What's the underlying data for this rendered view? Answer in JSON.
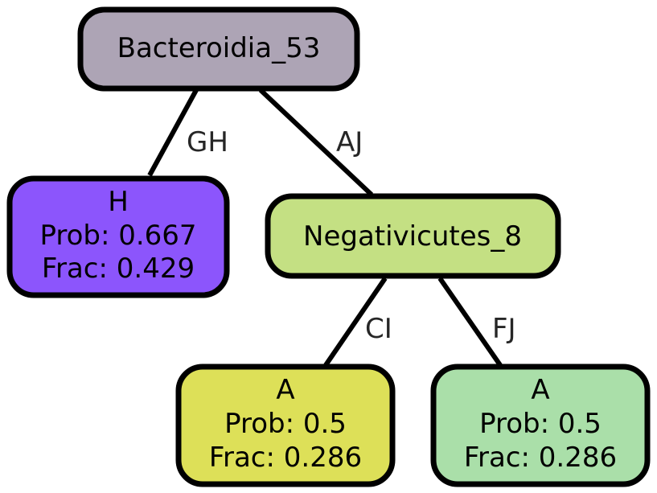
{
  "tree": {
    "nodes": {
      "root": {
        "label": "Bacteroidia_53",
        "color": "#ada4b5"
      },
      "leaf_h": {
        "label": "H",
        "prob": "Prob: 0.667",
        "frac": "Frac: 0.429",
        "color": "#8c55fc"
      },
      "inner_neg": {
        "label": "Negativicutes_8",
        "color": "#c4e083"
      },
      "leaf_a1": {
        "label": "A",
        "prob": "Prob: 0.5",
        "frac": "Frac: 0.286",
        "color": "#dde058"
      },
      "leaf_a2": {
        "label": "A",
        "prob": "Prob: 0.5",
        "frac": "Frac: 0.286",
        "color": "#aadfa9"
      }
    },
    "edges": {
      "root_to_h": "GH",
      "root_to_neg": "AJ",
      "neg_to_a1": "CI",
      "neg_to_a2": "FJ"
    }
  }
}
